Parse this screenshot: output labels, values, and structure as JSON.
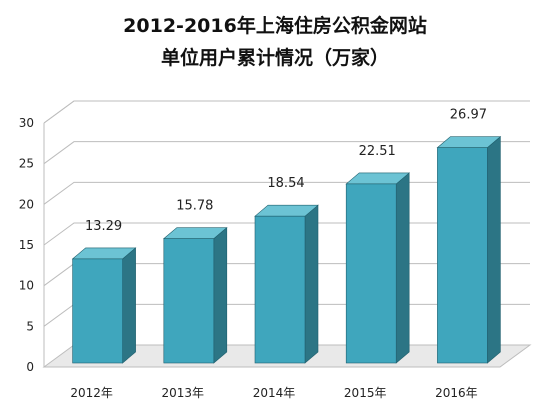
{
  "chart_data": {
    "type": "bar",
    "title": "2012-2016年上海住房公积金网站",
    "subtitle": "单位用户累计情况（万家）",
    "categories": [
      "2012年",
      "2013年",
      "2014年",
      "2015年",
      "2016年"
    ],
    "values": [
      13.29,
      15.78,
      18.54,
      22.51,
      26.97
    ],
    "value_labels": [
      "13.29",
      "15.78",
      "18.54",
      "22.51",
      "26.97"
    ],
    "y_ticks": [
      "0",
      "5",
      "10",
      "15",
      "20",
      "25",
      "30"
    ],
    "ylim": [
      0,
      30
    ],
    "xlabel": "",
    "ylabel": "",
    "grid": true,
    "legend": "none",
    "colors": {
      "bar_front": "#3fa6bd",
      "bar_side": "#2c7585",
      "bar_top": "#6cc3d4",
      "grid": "#bdbdbd",
      "floor": "#e9e9e9"
    }
  }
}
